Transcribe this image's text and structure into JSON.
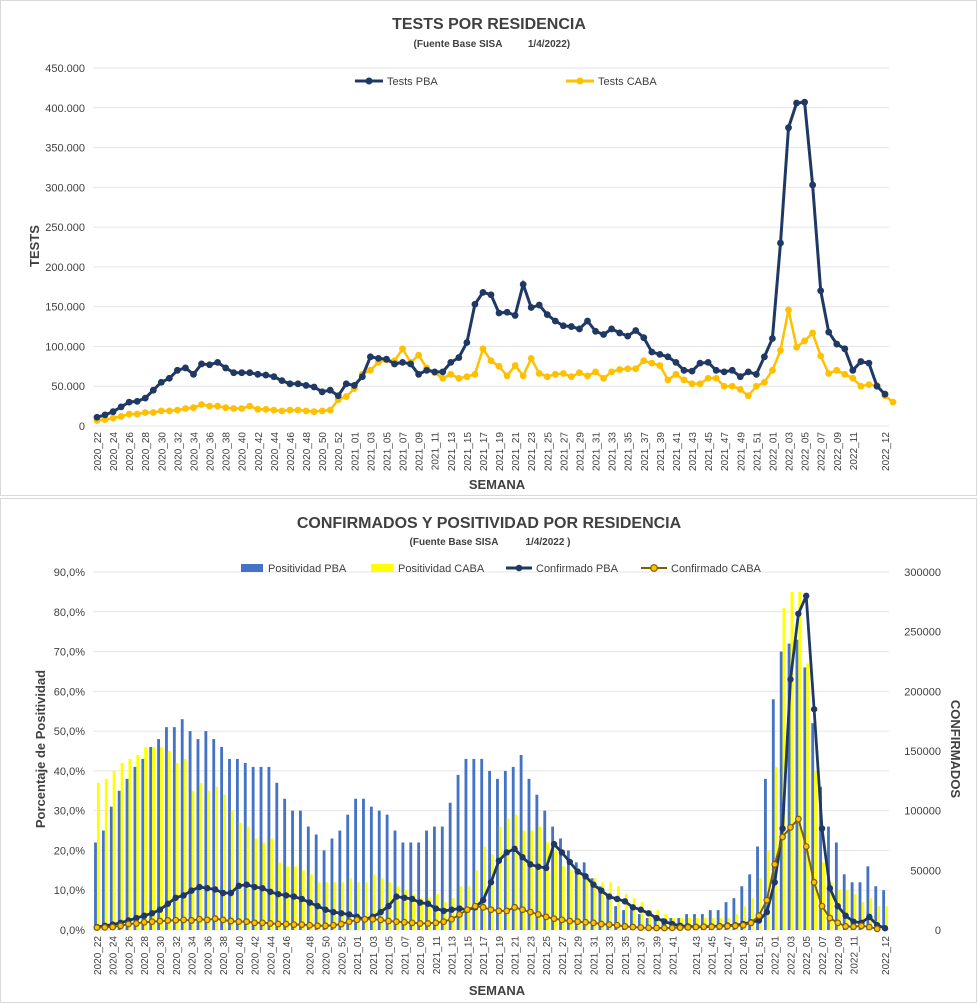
{
  "chart_data": [
    {
      "type": "line",
      "title": "TESTS POR RESIDENCIA",
      "subtitle": "(Fuente Base SISA",
      "date": "1/4/2022)",
      "xlabel": "SEMANA",
      "ylabel": "TESTS",
      "ylim": [
        0,
        450000
      ],
      "yticks": [
        "0",
        "50.000",
        "100.000",
        "150.000",
        "200.000",
        "250.000",
        "300.000",
        "350.000",
        "400.000",
        "450.000"
      ],
      "x_tick_labels": [
        "2020_22",
        "2020_24",
        "2020_26",
        "2020_28",
        "2020_30",
        "2020_32",
        "2020_34",
        "2020_36",
        "2020_38",
        "2020_40",
        "2020_42",
        "2020_44",
        "2020_46",
        "2020_48",
        "2020_50",
        "2020_52",
        "2021_01",
        "2021_03",
        "2021_05",
        "2021_07",
        "2021_09",
        "2021_11",
        "2021_13",
        "2021_15",
        "2021_17",
        "2021_19",
        "2021_21",
        "2021_23",
        "2021_25",
        "2021_27",
        "2021_29",
        "2021_31",
        "2021_33",
        "2021_35",
        "2021_37",
        "2021_39",
        "2021_41",
        "2021_43",
        "2021_45",
        "2021_47",
        "2021_49",
        "2021_51",
        "2022_01",
        "2022_03",
        "2022_05",
        "2022_07",
        "2022_09",
        "2022_11",
        "2022_12"
      ],
      "legend_position": "top",
      "series": [
        {
          "name": "Tests PBA",
          "color": "#1f3864",
          "values": [
            11000,
            14000,
            18000,
            24000,
            30000,
            31000,
            35000,
            45000,
            55000,
            60000,
            70000,
            73000,
            65000,
            78000,
            77000,
            80000,
            73000,
            67000,
            67000,
            67000,
            65000,
            64000,
            62000,
            57000,
            53000,
            53000,
            51000,
            49000,
            43000,
            45000,
            38000,
            53000,
            51000,
            62000,
            87000,
            85000,
            84000,
            78000,
            80000,
            78000,
            65000,
            70000,
            68000,
            68000,
            80000,
            86000,
            105000,
            153000,
            168000,
            165000,
            142000,
            143000,
            139000,
            178000,
            149000,
            152000,
            140000,
            132000,
            126000,
            125000,
            122000,
            132000,
            119000,
            115000,
            122000,
            117000,
            113000,
            120000,
            111000,
            93000,
            90000,
            87000,
            80000,
            70000,
            69000,
            79000,
            80000,
            70000,
            68000,
            70000,
            62000,
            68000,
            65000,
            87000,
            110000,
            230000,
            375000,
            406000,
            407000,
            303000,
            170000,
            118000,
            103000,
            97000,
            70000,
            81000,
            79000,
            50000,
            40000
          ]
        },
        {
          "name": "Tests CABA",
          "color": "#ffc000",
          "values": [
            7000,
            8000,
            10000,
            12000,
            15000,
            15000,
            17000,
            17000,
            19000,
            19000,
            20000,
            22000,
            23000,
            27000,
            25000,
            25000,
            23000,
            22000,
            22000,
            25000,
            21000,
            21000,
            20000,
            19000,
            20000,
            20000,
            19000,
            18000,
            19000,
            20000,
            33000,
            37000,
            47000,
            65000,
            70000,
            80000,
            83000,
            82000,
            97000,
            80000,
            89000,
            73000,
            67000,
            60000,
            65000,
            60000,
            62000,
            65000,
            97000,
            82000,
            75000,
            63000,
            76000,
            63000,
            85000,
            66000,
            62000,
            65000,
            66000,
            62000,
            67000,
            63000,
            68000,
            60000,
            68000,
            71000,
            72000,
            72000,
            82000,
            79000,
            76000,
            58000,
            65000,
            58000,
            53000,
            53000,
            60000,
            60000,
            50000,
            50000,
            46000,
            38000,
            50000,
            55000,
            70000,
            95000,
            146000,
            99000,
            107000,
            117000,
            88000,
            66000,
            70000,
            65000,
            60000,
            50000,
            52000,
            51000,
            38000,
            30000
          ]
        }
      ]
    },
    {
      "type": "bar",
      "title": "CONFIRMADOS Y POSITIVIDAD POR RESIDENCIA",
      "subtitle": "(Fuente Base SISA",
      "date": "1/4/2022 )",
      "xlabel": "SEMANA",
      "ylabel_left": "Porcentaje de Positividad",
      "ylabel_right": "CONFIRMADOS",
      "ylim_left": [
        0,
        90
      ],
      "ylim_right": [
        0,
        300000
      ],
      "yticks_left": [
        "0,0%",
        "10,0%",
        "20,0%",
        "30,0%",
        "40,0%",
        "50,0%",
        "60,0%",
        "70,0%",
        "80,0%",
        "90,0%"
      ],
      "yticks_right": [
        "0",
        "50000",
        "100000",
        "150000",
        "200000",
        "250000",
        "300000"
      ],
      "x_tick_labels": [
        "2020_22",
        "2020_24",
        "2020_26",
        "2020_28",
        "2020_30",
        "2020_32",
        "2020_34",
        "2020_36",
        "2020_38",
        "2020_40",
        "2020_42",
        "2020_44",
        "2020_46",
        "2020_48",
        "2020_50",
        "2020_52",
        "2021_01",
        "2021_03",
        "2021_05",
        "2021_07",
        "2021_09",
        "2021_11",
        "2021_13",
        "2021_15",
        "2021_17",
        "2021_19",
        "2021_21",
        "2021_23",
        "2021_25",
        "2021_27",
        "2021_29",
        "2021_31",
        "2021_33",
        "2021_35",
        "2021_37",
        "2021_39",
        "2021_41",
        "2021_43",
        "2021_45",
        "2021_47",
        "2021_49",
        "2021_51",
        "2022_01",
        "2022_03",
        "2022_05",
        "2022_07",
        "2022_09",
        "2022_11",
        "2022_12"
      ],
      "legend_position": "top",
      "series": [
        {
          "name": "Positividad PBA",
          "kind": "bar",
          "axis": "left",
          "color": "#4472c4",
          "values": [
            22,
            25,
            31,
            35,
            38,
            41,
            43,
            46,
            48,
            51,
            51,
            53,
            50,
            48,
            50,
            48,
            46,
            43,
            43,
            42,
            41,
            41,
            41,
            37,
            33,
            30,
            30,
            26,
            24,
            20,
            23,
            25,
            29,
            33,
            33,
            31,
            30,
            29,
            25,
            22,
            22,
            22,
            25,
            26,
            26,
            32,
            39,
            43,
            43,
            43,
            40,
            38,
            40,
            41,
            44,
            38,
            34,
            30,
            26,
            23,
            20,
            17,
            17,
            13,
            11,
            9,
            6,
            5,
            5,
            4,
            3,
            3,
            3,
            3,
            3,
            4,
            4,
            4,
            5,
            5,
            7,
            8,
            11,
            14,
            21,
            38,
            58,
            70,
            72,
            73,
            66,
            52,
            36,
            26,
            22,
            14,
            12,
            12,
            16,
            11,
            10
          ]
        },
        {
          "name": "Positividad CABA",
          "kind": "bar",
          "axis": "left",
          "color": "#ffff00",
          "values": [
            37,
            38,
            40,
            42,
            43,
            44,
            46,
            46,
            46,
            45,
            42,
            43,
            35,
            37,
            35,
            36,
            34,
            30,
            27,
            26,
            23,
            22,
            23,
            17,
            16,
            16,
            15,
            14,
            12,
            12,
            12,
            12,
            13,
            12,
            12,
            14,
            13,
            12,
            11,
            10,
            9,
            8,
            8,
            9,
            7,
            8,
            11,
            11,
            15,
            21,
            19,
            26,
            28,
            29,
            25,
            25,
            26,
            22,
            20,
            16,
            15,
            14,
            14,
            13,
            12,
            12,
            11,
            9,
            8,
            7,
            5,
            5,
            4,
            3,
            3,
            3,
            3,
            3,
            3,
            3,
            3,
            4,
            6,
            8,
            13,
            20,
            41,
            81,
            85,
            85,
            67,
            40,
            17,
            12,
            10,
            10,
            9,
            7,
            8,
            6,
            6
          ]
        },
        {
          "name": "Confirmado PBA",
          "kind": "line",
          "axis": "right",
          "color": "#1f3864",
          "values": [
            2500,
            3500,
            4500,
            6000,
            8000,
            10000,
            12000,
            14000,
            17000,
            22000,
            27000,
            29000,
            33000,
            36000,
            35000,
            34000,
            31000,
            31000,
            37000,
            38000,
            36000,
            35000,
            32000,
            30000,
            29000,
            28000,
            26000,
            23000,
            20000,
            17000,
            15000,
            14000,
            13000,
            11000,
            9000,
            11000,
            15000,
            20000,
            28000,
            27000,
            26000,
            23000,
            22000,
            18000,
            16000,
            17000,
            18000,
            17000,
            19000,
            25000,
            40000,
            58000,
            65000,
            68000,
            61000,
            55000,
            53000,
            52000,
            72000,
            65000,
            57000,
            49000,
            45000,
            38000,
            33000,
            28000,
            26000,
            24000,
            19000,
            17000,
            14000,
            10000,
            7000,
            5000,
            3500,
            3000,
            2700,
            2600,
            3000,
            3300,
            3800,
            4000,
            5000,
            6500,
            8000,
            15000,
            40000,
            85000,
            210000,
            265000,
            280000,
            185000,
            85000,
            35000,
            20000,
            12000,
            7000,
            6000,
            11000,
            4000,
            1500
          ]
        },
        {
          "name": "Confirmado CABA",
          "kind": "line",
          "axis": "right",
          "color": "#7f6000",
          "fill": "#ffc000",
          "values": [
            2000,
            2200,
            2500,
            3500,
            5000,
            5500,
            6500,
            7000,
            7500,
            8000,
            8200,
            8500,
            8000,
            9000,
            8500,
            9500,
            8500,
            7500,
            7000,
            7000,
            6000,
            6000,
            5500,
            5000,
            5000,
            4500,
            4500,
            4000,
            3500,
            3500,
            4000,
            5000,
            7000,
            8500,
            9000,
            9000,
            8500,
            7500,
            7000,
            6500,
            6000,
            5500,
            5500,
            6000,
            7000,
            9000,
            13000,
            17000,
            20000,
            19000,
            17000,
            16000,
            16000,
            19000,
            17000,
            15000,
            13000,
            11000,
            9500,
            8500,
            7500,
            7000,
            6500,
            6000,
            5000,
            4500,
            4000,
            3000,
            2500,
            2000,
            1800,
            1700,
            1700,
            1800,
            2000,
            2200,
            2500,
            2700,
            2700,
            3000,
            3300,
            3500,
            4000,
            6000,
            12000,
            25000,
            55000,
            78000,
            86000,
            93000,
            70000,
            40000,
            20000,
            10000,
            6000,
            3000,
            2800,
            3500,
            2500,
            1000
          ]
        }
      ]
    }
  ]
}
